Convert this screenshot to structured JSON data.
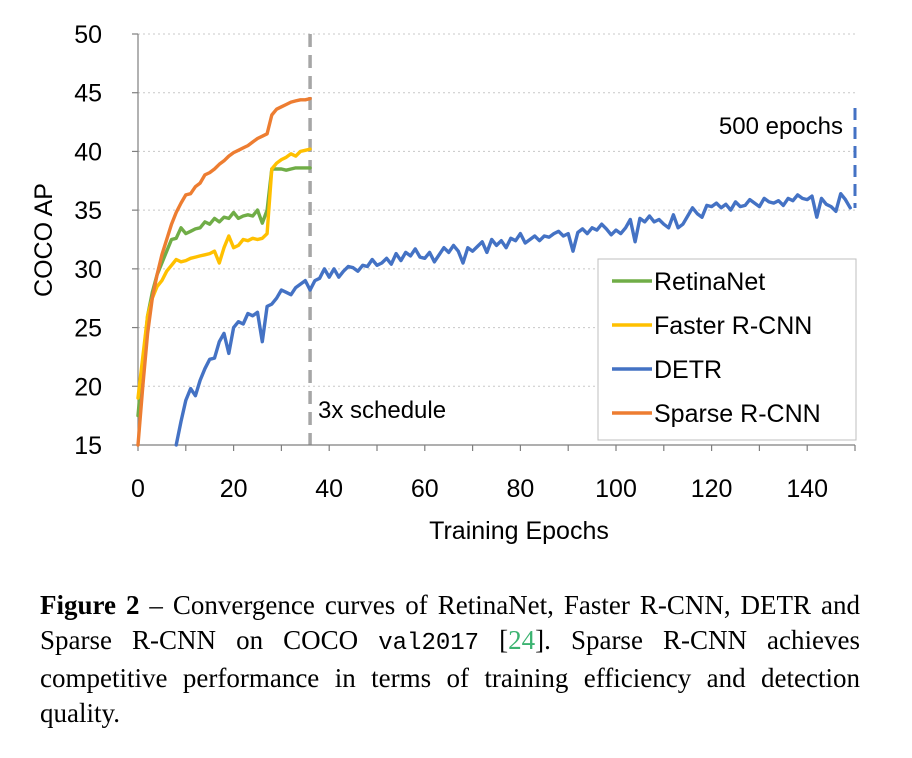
{
  "chart_data": {
    "type": "line",
    "xlabel": "Training Epochs",
    "ylabel": "COCO AP",
    "xlim": [
      0,
      150
    ],
    "ylim": [
      15,
      50
    ],
    "xticks": [
      0,
      20,
      40,
      60,
      80,
      100,
      120,
      140
    ],
    "yticks": [
      15,
      20,
      25,
      30,
      35,
      40,
      45,
      50
    ],
    "grid": "horizontal dotted",
    "legend_placement": "lower-right",
    "annotations": [
      {
        "text": "3x schedule",
        "x": 36
      },
      {
        "text": "500 epochs",
        "x": 150
      }
    ],
    "series": [
      {
        "name": "RetinaNet",
        "color": "#70ad47",
        "points": [
          [
            0,
            17.5
          ],
          [
            1,
            22
          ],
          [
            2,
            26
          ],
          [
            3,
            28
          ],
          [
            4,
            29.5
          ],
          [
            5,
            30.5
          ],
          [
            6,
            31.5
          ],
          [
            7,
            32.5
          ],
          [
            8,
            32.6
          ],
          [
            9,
            33.5
          ],
          [
            10,
            33
          ],
          [
            11,
            33.2
          ],
          [
            12,
            33.4
          ],
          [
            13,
            33.5
          ],
          [
            14,
            34
          ],
          [
            15,
            33.8
          ],
          [
            16,
            34.3
          ],
          [
            17,
            34
          ],
          [
            18,
            34.4
          ],
          [
            19,
            34.3
          ],
          [
            20,
            34.8
          ],
          [
            21,
            34.3
          ],
          [
            22,
            34.5
          ],
          [
            23,
            34.6
          ],
          [
            24,
            34.5
          ],
          [
            25,
            35
          ],
          [
            26,
            33.9
          ],
          [
            27,
            35
          ],
          [
            28,
            38.5
          ],
          [
            29,
            38.5
          ],
          [
            30,
            38.5
          ],
          [
            31,
            38.4
          ],
          [
            32,
            38.5
          ],
          [
            33,
            38.6
          ],
          [
            34,
            38.6
          ],
          [
            35,
            38.6
          ],
          [
            36,
            38.6
          ]
        ]
      },
      {
        "name": "Faster R-CNN",
        "color": "#ffc000",
        "points": [
          [
            0,
            19
          ],
          [
            1,
            22.5
          ],
          [
            2,
            26
          ],
          [
            3,
            27.5
          ],
          [
            4,
            28.5
          ],
          [
            5,
            29
          ],
          [
            6,
            29.8
          ],
          [
            7,
            30.3
          ],
          [
            8,
            30.8
          ],
          [
            9,
            30.6
          ],
          [
            10,
            30.7
          ],
          [
            11,
            30.9
          ],
          [
            12,
            31
          ],
          [
            13,
            31.1
          ],
          [
            14,
            31.2
          ],
          [
            15,
            31.3
          ],
          [
            16,
            31.5
          ],
          [
            17,
            30.5
          ],
          [
            18,
            31.8
          ],
          [
            19,
            32.8
          ],
          [
            20,
            31.8
          ],
          [
            21,
            32
          ],
          [
            22,
            32.5
          ],
          [
            23,
            32.4
          ],
          [
            24,
            32.6
          ],
          [
            25,
            32.5
          ],
          [
            26,
            32.6
          ],
          [
            27,
            33
          ],
          [
            28,
            38.5
          ],
          [
            29,
            39
          ],
          [
            30,
            39.3
          ],
          [
            31,
            39.5
          ],
          [
            32,
            39.8
          ],
          [
            33,
            39.6
          ],
          [
            34,
            40
          ],
          [
            35,
            40.1
          ],
          [
            36,
            40.2
          ]
        ]
      },
      {
        "name": "DETR",
        "color": "#4472c4",
        "points": [
          [
            8,
            15
          ],
          [
            9,
            17
          ],
          [
            10,
            18.8
          ],
          [
            11,
            19.8
          ],
          [
            12,
            19.2
          ],
          [
            13,
            20.5
          ],
          [
            14,
            21.5
          ],
          [
            15,
            22.3
          ],
          [
            16,
            22.4
          ],
          [
            17,
            23.8
          ],
          [
            18,
            24.5
          ],
          [
            19,
            22.8
          ],
          [
            20,
            25
          ],
          [
            21,
            25.5
          ],
          [
            22,
            25.3
          ],
          [
            23,
            26.2
          ],
          [
            24,
            26
          ],
          [
            25,
            26.3
          ],
          [
            26,
            23.8
          ],
          [
            27,
            26.8
          ],
          [
            28,
            27
          ],
          [
            29,
            27.5
          ],
          [
            30,
            28.2
          ],
          [
            31,
            28
          ],
          [
            32,
            27.8
          ],
          [
            33,
            28.4
          ],
          [
            34,
            28.7
          ],
          [
            35,
            29
          ],
          [
            36,
            28.2
          ],
          [
            37,
            29
          ],
          [
            38,
            29.2
          ],
          [
            39,
            30
          ],
          [
            40,
            29.3
          ],
          [
            41,
            30
          ],
          [
            42,
            29.3
          ],
          [
            43,
            29.8
          ],
          [
            44,
            30.2
          ],
          [
            45,
            30.1
          ],
          [
            46,
            29.8
          ],
          [
            47,
            30.3
          ],
          [
            48,
            30.2
          ],
          [
            49,
            30.8
          ],
          [
            50,
            30.3
          ],
          [
            51,
            30.5
          ],
          [
            52,
            30.9
          ],
          [
            53,
            30.4
          ],
          [
            54,
            31.3
          ],
          [
            55,
            30.7
          ],
          [
            56,
            31.4
          ],
          [
            57,
            31.1
          ],
          [
            58,
            31.7
          ],
          [
            59,
            31
          ],
          [
            60,
            30.9
          ],
          [
            61,
            31.4
          ],
          [
            62,
            30.6
          ],
          [
            63,
            31.2
          ],
          [
            64,
            31.8
          ],
          [
            65,
            31.4
          ],
          [
            66,
            32
          ],
          [
            67,
            31.5
          ],
          [
            68,
            30.5
          ],
          [
            69,
            31.8
          ],
          [
            70,
            31.5
          ],
          [
            71,
            31.9
          ],
          [
            72,
            32.3
          ],
          [
            73,
            31.4
          ],
          [
            74,
            32.5
          ],
          [
            75,
            32
          ],
          [
            76,
            32.4
          ],
          [
            77,
            31.8
          ],
          [
            78,
            32.6
          ],
          [
            79,
            32.4
          ],
          [
            80,
            33
          ],
          [
            81,
            32.2
          ],
          [
            82,
            32.5
          ],
          [
            83,
            32.8
          ],
          [
            84,
            32.4
          ],
          [
            85,
            32.8
          ],
          [
            86,
            32.7
          ],
          [
            87,
            33
          ],
          [
            88,
            33.2
          ],
          [
            89,
            32.8
          ],
          [
            90,
            33
          ],
          [
            91,
            31.5
          ],
          [
            92,
            33.1
          ],
          [
            93,
            33.4
          ],
          [
            94,
            33
          ],
          [
            95,
            33.5
          ],
          [
            96,
            33.3
          ],
          [
            97,
            33.8
          ],
          [
            98,
            33.4
          ],
          [
            99,
            32.9
          ],
          [
            100,
            33.3
          ],
          [
            101,
            33
          ],
          [
            102,
            33.5
          ],
          [
            103,
            34.2
          ],
          [
            104,
            32.3
          ],
          [
            105,
            34.3
          ],
          [
            106,
            34
          ],
          [
            107,
            34.5
          ],
          [
            108,
            34
          ],
          [
            109,
            34.2
          ],
          [
            110,
            33.8
          ],
          [
            111,
            33.5
          ],
          [
            112,
            34.6
          ],
          [
            113,
            33.5
          ],
          [
            114,
            33.8
          ],
          [
            115,
            34.5
          ],
          [
            116,
            35.2
          ],
          [
            117,
            34.7
          ],
          [
            118,
            34.4
          ],
          [
            119,
            35.4
          ],
          [
            120,
            35.3
          ],
          [
            121,
            35.6
          ],
          [
            122,
            35.2
          ],
          [
            123,
            35.5
          ],
          [
            124,
            35
          ],
          [
            125,
            35.7
          ],
          [
            126,
            35.3
          ],
          [
            127,
            35.4
          ],
          [
            128,
            35.9
          ],
          [
            129,
            35.6
          ],
          [
            130,
            35.3
          ],
          [
            131,
            36
          ],
          [
            132,
            35.7
          ],
          [
            133,
            35.6
          ],
          [
            134,
            35.8
          ],
          [
            135,
            35.4
          ],
          [
            136,
            36
          ],
          [
            137,
            35.8
          ],
          [
            138,
            36.3
          ],
          [
            139,
            36
          ],
          [
            140,
            35.9
          ],
          [
            141,
            36.2
          ],
          [
            142,
            34.4
          ],
          [
            143,
            36
          ],
          [
            144,
            35.5
          ],
          [
            145,
            35.3
          ],
          [
            146,
            34.9
          ],
          [
            147,
            36.4
          ],
          [
            148,
            35.9
          ],
          [
            149,
            35.2
          ]
        ]
      },
      {
        "name": "Sparse R-CNN",
        "color": "#ed7d31",
        "points": [
          [
            0,
            15
          ],
          [
            1,
            20
          ],
          [
            2,
            24.5
          ],
          [
            3,
            27.5
          ],
          [
            4,
            29.5
          ],
          [
            5,
            31.2
          ],
          [
            6,
            32.5
          ],
          [
            7,
            33.8
          ],
          [
            8,
            34.8
          ],
          [
            9,
            35.6
          ],
          [
            10,
            36.3
          ],
          [
            11,
            36.4
          ],
          [
            12,
            37
          ],
          [
            13,
            37.3
          ],
          [
            14,
            38
          ],
          [
            15,
            38.2
          ],
          [
            16,
            38.5
          ],
          [
            17,
            38.9
          ],
          [
            18,
            39.2
          ],
          [
            19,
            39.6
          ],
          [
            20,
            39.9
          ],
          [
            21,
            40.1
          ],
          [
            22,
            40.3
          ],
          [
            23,
            40.5
          ],
          [
            24,
            40.8
          ],
          [
            25,
            41.1
          ],
          [
            26,
            41.3
          ],
          [
            27,
            41.5
          ],
          [
            28,
            43.1
          ],
          [
            29,
            43.6
          ],
          [
            30,
            43.8
          ],
          [
            31,
            44
          ],
          [
            32,
            44.2
          ],
          [
            33,
            44.3
          ],
          [
            34,
            44.4
          ],
          [
            35,
            44.4
          ],
          [
            36,
            44.5
          ]
        ]
      }
    ]
  },
  "caption": {
    "fig_label": "Figure 2",
    "text_1": " – Convergence curves of RetinaNet, Faster R-CNN, DETR and Sparse R-CNN on COCO ",
    "mono": "val2017",
    "bracket_open": " [",
    "ref": "24",
    "text_2": "]. Sparse R-CNN achieves competitive performance in terms of training efficiency and detection quality."
  }
}
